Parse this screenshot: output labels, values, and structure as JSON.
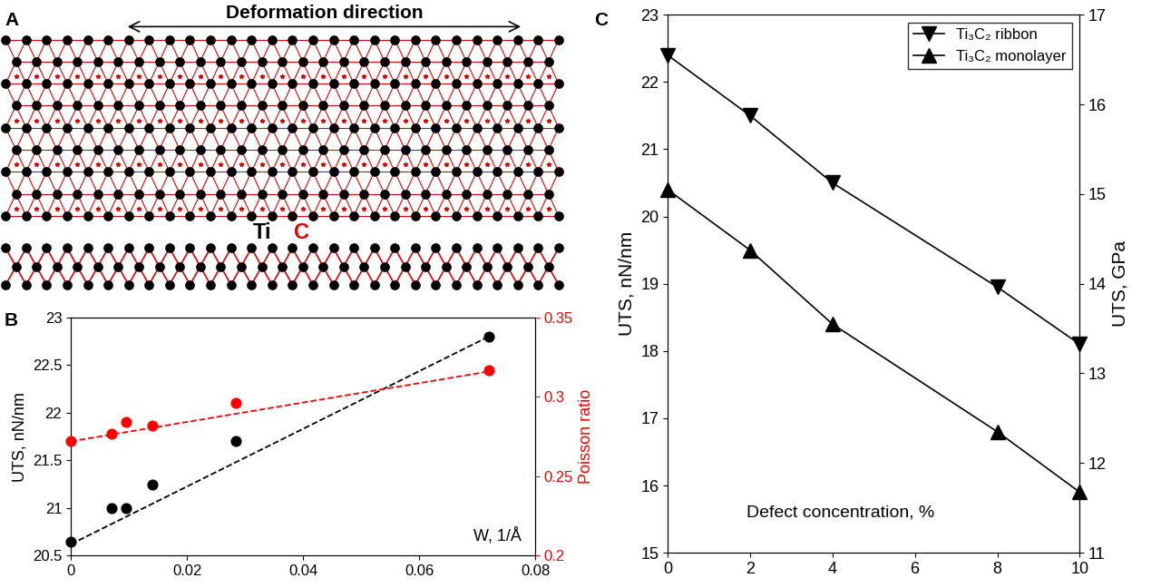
{
  "diagram": {
    "panel": "A",
    "title": "Deformation direction",
    "atoms": [
      {
        "label": "Ti",
        "color": "#000000"
      },
      {
        "label": "C",
        "color": "#e00000"
      }
    ]
  },
  "chart_data": [
    {
      "panel": "B",
      "type": "scatter",
      "x_label": "W, 1/Å",
      "y_label": "UTS, nN/nm",
      "y2_label": "Poisson ratio",
      "xlim": [
        0,
        0.08
      ],
      "xticks": [
        0,
        0.02,
        0.04,
        0.06,
        0.08
      ],
      "ylim": [
        20.5,
        23
      ],
      "yticks": [
        20.5,
        21,
        21.5,
        22,
        22.5,
        23
      ],
      "y2lim": [
        0.2,
        0.35
      ],
      "y2ticks": [
        0.2,
        0.25,
        0.3,
        0.35
      ],
      "series": [
        {
          "type": "scatter",
          "color": "#000000",
          "marker": "circle",
          "x": [
            0,
            0.007,
            0.0095,
            0.014,
            0.0285,
            0.072
          ],
          "values": [
            20.65,
            21.0,
            21.0,
            21.25,
            21.7,
            22.8
          ]
        },
        {
          "type": "line",
          "color": "#000000",
          "line_style": "dashed",
          "x": [
            0,
            0.072
          ],
          "values": [
            20.62,
            22.8
          ]
        },
        {
          "type": "scatter",
          "color": "#ff0000",
          "marker": "circle",
          "axis": "y2",
          "x": [
            0,
            0.007,
            0.0095,
            0.014,
            0.0285,
            0.072
          ],
          "values": [
            0.272,
            0.277,
            0.284,
            0.282,
            0.296,
            0.317
          ]
        },
        {
          "type": "line",
          "color": "#ff0000",
          "line_style": "dashed",
          "axis": "y2",
          "x": [
            0,
            0.072
          ],
          "values": [
            0.272,
            0.316
          ]
        }
      ]
    },
    {
      "panel": "C",
      "type": "line",
      "x_label": "Defect concentration, %",
      "y_label": "UTS, nN/nm",
      "y2_label": "UTS, GPa",
      "xlim": [
        0,
        10
      ],
      "xticks": [
        0,
        2,
        4,
        6,
        8,
        10
      ],
      "ylim": [
        15,
        23
      ],
      "yticks": [
        15,
        16,
        17,
        18,
        19,
        20,
        21,
        22,
        23
      ],
      "y2lim": [
        11,
        17
      ],
      "y2ticks": [
        11,
        12,
        13,
        14,
        15,
        16,
        17
      ],
      "legend": "upper right",
      "x": [
        0,
        2,
        4,
        8,
        10
      ],
      "series": [
        {
          "name": "Ti₃C₂ ribbon",
          "color": "#000000",
          "marker": "triangle_down",
          "values": [
            22.4,
            21.5,
            20.5,
            18.95,
            18.1
          ]
        },
        {
          "name": "Ti₃C₂ monolayer",
          "color": "#000000",
          "marker": "triangle_up",
          "values": [
            20.4,
            19.5,
            18.4,
            16.8,
            15.9
          ]
        }
      ]
    }
  ]
}
